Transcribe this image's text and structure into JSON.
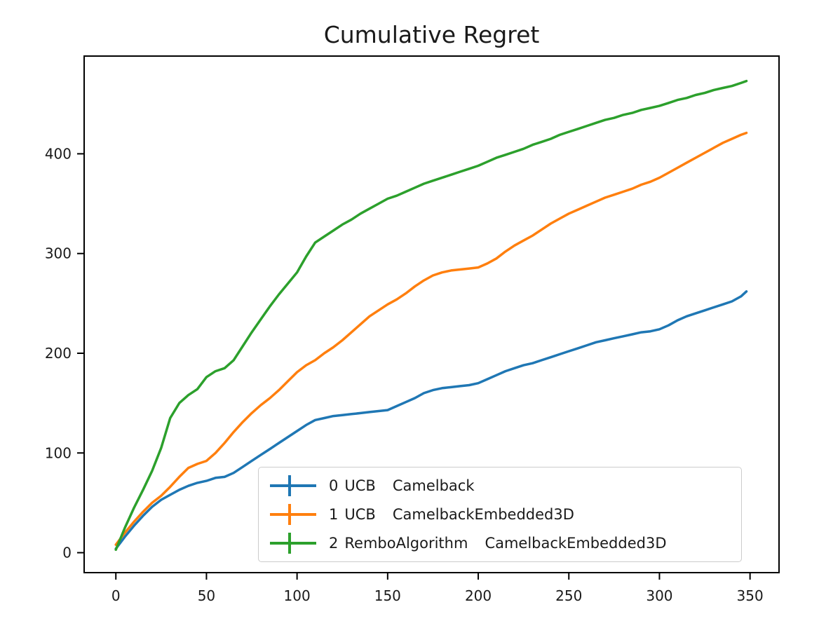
{
  "figure": {
    "title": "Cumulative Regret",
    "colors": {
      "blue": "#1f77b4",
      "orange": "#ff7f0e",
      "green": "#2ca02c",
      "axis": "#000000",
      "text": "#1a1a1a",
      "legend_border": "#cccccc"
    }
  },
  "legend": {
    "items": [
      {
        "index": "0",
        "algorithm": "UCB",
        "benchmark": "Camelback",
        "color": "#1f77b4"
      },
      {
        "index": "1",
        "algorithm": "UCB",
        "benchmark": "CamelbackEmbedded3D",
        "color": "#ff7f0e"
      },
      {
        "index": "2",
        "algorithm": "RemboAlgorithm",
        "benchmark": "CamelbackEmbedded3D",
        "color": "#2ca02c"
      }
    ]
  },
  "chart_data": {
    "type": "line",
    "title": "Cumulative Regret",
    "xlabel": "",
    "ylabel": "",
    "xlim": [
      -17.5,
      366
    ],
    "ylim": [
      -20,
      498
    ],
    "x_ticks": [
      0,
      50,
      100,
      150,
      200,
      250,
      300,
      350
    ],
    "y_ticks": [
      0,
      100,
      200,
      300,
      400
    ],
    "grid": false,
    "legend_position": "lower right inside",
    "x": [
      0,
      5,
      10,
      15,
      20,
      25,
      30,
      35,
      40,
      45,
      50,
      55,
      60,
      65,
      70,
      75,
      80,
      85,
      90,
      95,
      100,
      105,
      110,
      115,
      120,
      125,
      130,
      135,
      140,
      145,
      150,
      155,
      160,
      165,
      170,
      175,
      180,
      185,
      190,
      195,
      200,
      205,
      210,
      215,
      220,
      225,
      230,
      235,
      240,
      245,
      250,
      255,
      260,
      265,
      270,
      275,
      280,
      285,
      290,
      295,
      300,
      305,
      310,
      315,
      320,
      325,
      330,
      335,
      340,
      345,
      348
    ],
    "series": [
      {
        "name": "0 UCB   Camelback",
        "color": "#1f77b4",
        "values": [
          4,
          16,
          27,
          37,
          46,
          53,
          58,
          63,
          67,
          70,
          72,
          75,
          76,
          80,
          86,
          92,
          98,
          104,
          110,
          116,
          122,
          128,
          133,
          135,
          137,
          138,
          139,
          140,
          141,
          142,
          143,
          147,
          151,
          155,
          160,
          163,
          165,
          166,
          167,
          168,
          170,
          174,
          178,
          182,
          185,
          188,
          190,
          193,
          196,
          199,
          202,
          205,
          208,
          211,
          213,
          215,
          217,
          219,
          221,
          222,
          224,
          228,
          233,
          237,
          240,
          243,
          246,
          249,
          252,
          257,
          262
        ]
      },
      {
        "name": "1 UCB   CamelbackEmbedded3D",
        "color": "#ff7f0e",
        "values": [
          8,
          20,
          31,
          41,
          50,
          57,
          66,
          76,
          85,
          89,
          92,
          100,
          110,
          121,
          131,
          140,
          148,
          155,
          163,
          172,
          181,
          188,
          193,
          200,
          206,
          213,
          221,
          229,
          237,
          243,
          249,
          254,
          260,
          267,
          273,
          278,
          281,
          283,
          284,
          285,
          286,
          290,
          295,
          302,
          308,
          313,
          318,
          324,
          330,
          335,
          340,
          344,
          348,
          352,
          356,
          359,
          362,
          365,
          369,
          372,
          376,
          381,
          386,
          391,
          396,
          401,
          406,
          411,
          415,
          419,
          421
        ]
      },
      {
        "name": "2 RemboAlgorithm   CamelbackEmbedded3D",
        "color": "#2ca02c",
        "values": [
          3,
          25,
          45,
          63,
          82,
          105,
          135,
          150,
          158,
          164,
          176,
          182,
          185,
          193,
          207,
          221,
          234,
          247,
          259,
          270,
          281,
          297,
          311,
          317,
          323,
          329,
          334,
          340,
          345,
          350,
          355,
          358,
          362,
          366,
          370,
          373,
          376,
          379,
          382,
          385,
          388,
          392,
          396,
          399,
          402,
          405,
          409,
          412,
          415,
          419,
          422,
          425,
          428,
          431,
          434,
          436,
          439,
          441,
          444,
          446,
          448,
          451,
          454,
          456,
          459,
          461,
          464,
          466,
          468,
          471,
          473
        ]
      }
    ]
  }
}
